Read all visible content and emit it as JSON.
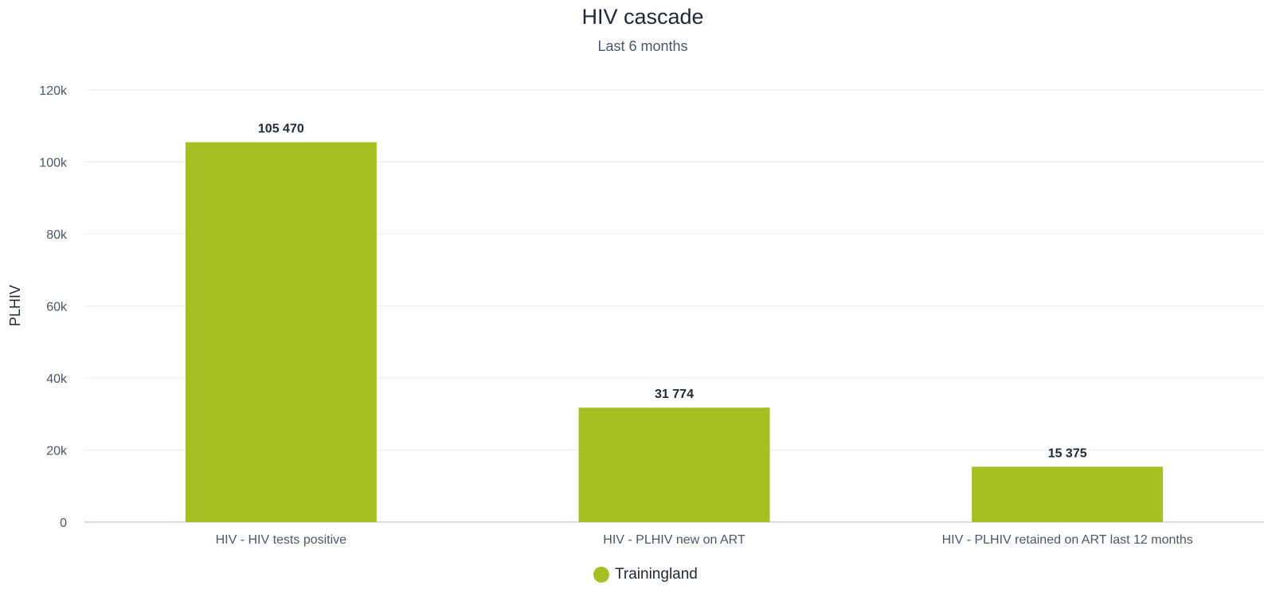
{
  "chart_data": {
    "type": "bar",
    "title": "HIV cascade",
    "subtitle": "Last 6 months",
    "xlabel": "",
    "ylabel": "PLHIV",
    "categories": [
      "HIV - HIV tests positive",
      "HIV - PLHIV new on ART",
      "HIV - PLHIV retained on ART last 12 months"
    ],
    "series": [
      {
        "name": "Trainingland",
        "values": [
          105470,
          31774,
          15375
        ],
        "value_labels": [
          "105 470",
          "31 774",
          "15 375"
        ],
        "color": "#a8bf24"
      }
    ],
    "ylim": [
      0,
      120000
    ],
    "yticks": [
      0,
      20000,
      40000,
      60000,
      80000,
      100000,
      120000
    ],
    "ytick_labels": [
      "0",
      "20k",
      "40k",
      "60k",
      "80k",
      "100k",
      "120k"
    ],
    "grid": true,
    "legend_position": "bottom-center"
  }
}
